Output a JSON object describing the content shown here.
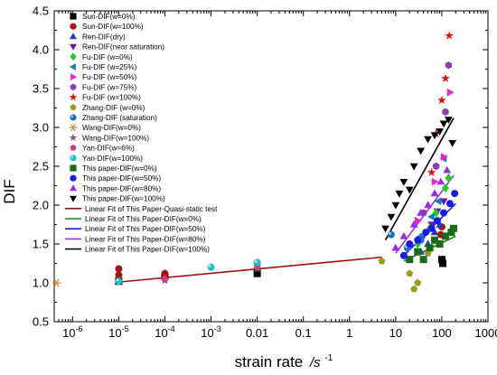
{
  "chart_data": {
    "type": "scatter",
    "title": "",
    "xlabel": "strain rate",
    "xlabel_unit": "/s",
    "xlabel_unit_exp": "-1",
    "ylabel": "DIF",
    "x_scale": "log",
    "xlim": [
      4e-07,
      1000
    ],
    "ylim": [
      0.5,
      4.5
    ],
    "grid": false,
    "legend_position": "top-left",
    "x_ticks": [
      {
        "value": 1e-06,
        "base": "10",
        "exp": "-6"
      },
      {
        "value": 1e-05,
        "base": "10",
        "exp": "-5"
      },
      {
        "value": 0.0001,
        "base": "10",
        "exp": "-4"
      },
      {
        "value": 0.001,
        "base": "10",
        "exp": "-3"
      },
      {
        "value": 0.01,
        "label": "0.01"
      },
      {
        "value": 0.1,
        "label": "0.1"
      },
      {
        "value": 1,
        "label": "1"
      },
      {
        "value": 10,
        "label": "10"
      },
      {
        "value": 100,
        "label": "100"
      },
      {
        "value": 1000,
        "label": "1000"
      }
    ],
    "y_ticks": [
      "0.5",
      "1.0",
      "1.5",
      "2.0",
      "2.5",
      "3.0",
      "3.5",
      "4.0",
      "4.5"
    ],
    "series": [
      {
        "name": "Sun-DIF(w=0%)",
        "marker": "square",
        "color": "#000000",
        "points": [
          [
            1e-05,
            1.02
          ],
          [
            0.0001,
            1.08
          ],
          [
            0.01,
            1.12
          ],
          [
            100,
            1.3
          ],
          [
            105,
            1.25
          ]
        ]
      },
      {
        "name": "Sun-DIF(w=100%)",
        "marker": "circle",
        "color": "#b01010",
        "points": [
          [
            1e-05,
            1.18
          ],
          [
            1e-05,
            1.1
          ],
          [
            0.0001,
            1.12
          ],
          [
            0.01,
            1.26
          ],
          [
            100,
            1.72
          ],
          [
            95,
            1.62
          ]
        ]
      },
      {
        "name": "Ren-DIF(dry)",
        "marker": "triangle-up",
        "color": "#1f3fbf",
        "points": [
          [
            35,
            1.4
          ],
          [
            50,
            1.5
          ],
          [
            70,
            1.65
          ],
          [
            90,
            1.75
          ]
        ]
      },
      {
        "name": "Ren-DIF(near saturation)",
        "marker": "triangle-down",
        "color": "#6a14b0",
        "points": [
          [
            40,
            1.6
          ],
          [
            60,
            1.75
          ],
          [
            80,
            1.92
          ],
          [
            110,
            2.05
          ]
        ]
      },
      {
        "name": "Fu-DIF (w=0%)",
        "marker": "diamond",
        "color": "#22cc22",
        "points": [
          [
            30,
            1.5
          ],
          [
            55,
            1.7
          ],
          [
            75,
            1.9
          ],
          [
            120,
            2.22
          ],
          [
            140,
            2.35
          ]
        ]
      },
      {
        "name": "Fu-DIF (w=25%)",
        "marker": "triangle-left",
        "color": "#0e7fbf",
        "points": [
          [
            35,
            1.6
          ],
          [
            60,
            1.85
          ],
          [
            85,
            2.05
          ],
          [
            110,
            2.6
          ]
        ]
      },
      {
        "name": "Fu-DIF (w=50%)",
        "marker": "triangle-right",
        "color": "#ee22cc",
        "points": [
          [
            30,
            1.8
          ],
          [
            70,
            2.3
          ],
          [
            110,
            2.62
          ],
          [
            150,
            3.45
          ]
        ]
      },
      {
        "name": "Fu-DIF (w=75%)",
        "marker": "hexagon",
        "color": "#8a3fb0",
        "points": [
          [
            40,
            1.9
          ],
          [
            75,
            2.5
          ],
          [
            120,
            3.2
          ],
          [
            140,
            3.8
          ]
        ]
      },
      {
        "name": "Fu-DIF (w=100%)",
        "marker": "star",
        "color": "#e01010",
        "points": [
          [
            60,
            2.42
          ],
          [
            75,
            2.92
          ],
          [
            100,
            3.35
          ],
          [
            120,
            3.63
          ],
          [
            145,
            4.18
          ]
        ]
      },
      {
        "name": "Zhang-DIF (w=0%)",
        "marker": "pentagon",
        "color": "#9b9a22",
        "points": [
          [
            5,
            1.28
          ],
          [
            20,
            1.12
          ],
          [
            25,
            0.92
          ],
          [
            30,
            1.0
          ],
          [
            40,
            1.3
          ],
          [
            50,
            1.38
          ]
        ]
      },
      {
        "name": "Zhang-DIF (saturation)",
        "marker": "sphere",
        "color": "#1e6fbf",
        "points": [
          [
            8,
            1.62
          ],
          [
            18,
            1.45
          ],
          [
            35,
            1.55
          ]
        ]
      },
      {
        "name": "Wang-DIF(w=0%)",
        "marker": "asterisk",
        "color": "#d08a3a",
        "points": [
          [
            4.5e-07,
            1.0
          ]
        ]
      },
      {
        "name": "Wang-DIF(w=100%)",
        "marker": "star",
        "color": "#8a5a5a",
        "points": [
          [
            0.0001,
            1.03
          ],
          [
            0.01,
            1.18
          ]
        ]
      },
      {
        "name": "Yan-DIF(w=6%)",
        "marker": "pentagon",
        "color": "#d03a80",
        "points": [
          [
            0.0001,
            1.05
          ],
          [
            0.01,
            1.22
          ]
        ]
      },
      {
        "name": "Yan-DIF(w=100%)",
        "marker": "sphere",
        "color": "#22bfbf",
        "points": [
          [
            1e-05,
            1.02
          ],
          [
            0.001,
            1.2
          ],
          [
            0.01,
            1.26
          ]
        ]
      },
      {
        "name": "This paper-DIF(w=0%)",
        "marker": "square",
        "color": "#1a6a1a",
        "points": [
          [
            20,
            1.3
          ],
          [
            30,
            1.4
          ],
          [
            40,
            1.3
          ],
          [
            55,
            1.45
          ],
          [
            70,
            1.55
          ],
          [
            90,
            1.5
          ],
          [
            120,
            1.6
          ],
          [
            160,
            1.65
          ],
          [
            180,
            1.7
          ]
        ]
      },
      {
        "name": "This paper-DIF(w=50%)",
        "marker": "circle",
        "color": "#1a1ae6",
        "points": [
          [
            15,
            1.35
          ],
          [
            20,
            1.5
          ],
          [
            30,
            1.55
          ],
          [
            45,
            1.65
          ],
          [
            60,
            1.7
          ],
          [
            80,
            1.8
          ],
          [
            110,
            1.9
          ],
          [
            150,
            2.02
          ],
          [
            190,
            2.15
          ]
        ]
      },
      {
        "name": "This paper-DIF(w=80%)",
        "marker": "triangle-up",
        "color": "#9a2ae6",
        "points": [
          [
            10,
            1.45
          ],
          [
            15,
            1.6
          ],
          [
            25,
            1.75
          ],
          [
            35,
            1.9
          ],
          [
            50,
            2.0
          ],
          [
            70,
            2.15
          ],
          [
            95,
            2.3
          ],
          [
            130,
            2.45
          ]
        ]
      },
      {
        "name": "This paper-DIF(w=100%)",
        "marker": "triangle-down",
        "color": "#000000",
        "points": [
          [
            6,
            1.7
          ],
          [
            8,
            1.85
          ],
          [
            10,
            2.0
          ],
          [
            12,
            2.15
          ],
          [
            15,
            2.3
          ],
          [
            20,
            2.2
          ],
          [
            25,
            2.5
          ],
          [
            35,
            2.7
          ],
          [
            50,
            2.85
          ],
          [
            70,
            2.9
          ],
          [
            90,
            2.95
          ],
          [
            110,
            3.05
          ],
          [
            140,
            3.1
          ],
          [
            170,
            2.8
          ]
        ]
      }
    ],
    "fits": [
      {
        "name": "Linear Fit of  This Paper-Quasi-static test",
        "color": "#a01010",
        "from": [
          1e-05,
          1.01
        ],
        "to": [
          5,
          1.33
        ]
      },
      {
        "name": "Linear Fit of  This Paper-DIF(w=0%)",
        "color": "#1a8a1a",
        "from": [
          15,
          1.28
        ],
        "to": [
          200,
          1.6
        ]
      },
      {
        "name": "Linear Fit of  This Paper-DIF(w=50%)",
        "color": "#1a1ae6",
        "from": [
          15,
          1.35
        ],
        "to": [
          200,
          2.02
        ]
      },
      {
        "name": "Linear Fit of  This Paper-DIF(w=80%)",
        "color": "#a030e0",
        "from": [
          10,
          1.38
        ],
        "to": [
          180,
          2.38
        ]
      },
      {
        "name": "Linear Fit of  This Paper-DIF(w=100%)",
        "color": "#000000",
        "from": [
          6,
          1.55
        ],
        "to": [
          180,
          3.12
        ]
      }
    ]
  }
}
